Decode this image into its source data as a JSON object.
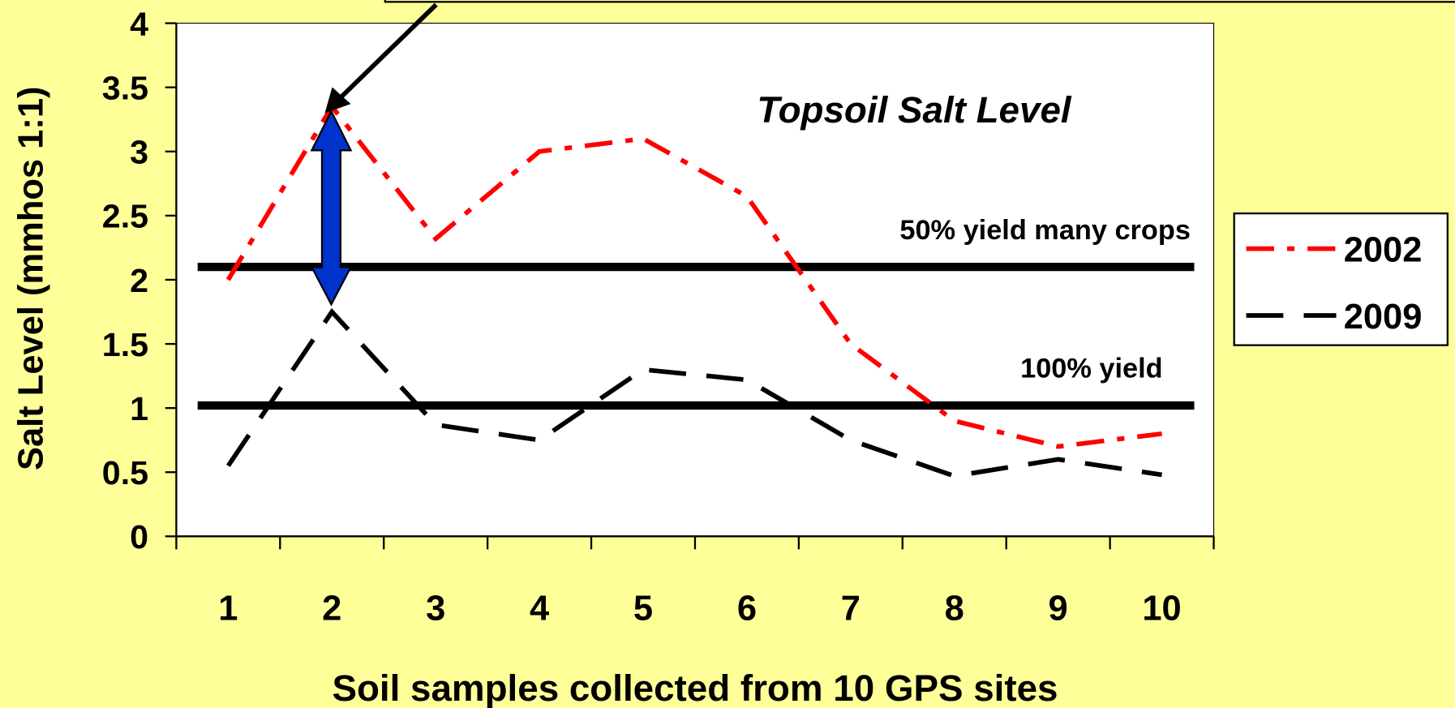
{
  "chart_data": {
    "type": "line",
    "title": "Topsoil Salt Level",
    "x_label": "Soil samples collected from 10 GPS sites",
    "y_label": "Salt Level (mmhos 1:1)",
    "categories": [
      "1",
      "2",
      "3",
      "4",
      "5",
      "6",
      "7",
      "8",
      "9",
      "10"
    ],
    "series": [
      {
        "name": "2002",
        "color": "#ff0000",
        "values": [
          2.0,
          3.35,
          2.32,
          3.0,
          3.1,
          2.65,
          1.5,
          0.9,
          0.7,
          0.8
        ]
      },
      {
        "name": "2009",
        "color": "#000000",
        "values": [
          0.55,
          1.75,
          0.87,
          0.75,
          1.3,
          1.22,
          0.75,
          0.47,
          0.6,
          0.48
        ]
      }
    ],
    "ylim": [
      0,
      4
    ],
    "yticks": [
      0,
      0.5,
      1,
      1.5,
      2,
      2.5,
      3,
      3.5,
      4
    ],
    "reference_lines": [
      {
        "label": "50% yield many crops",
        "value": 2.1
      },
      {
        "label": "100% yield",
        "value": 1.02
      }
    ],
    "legend": "right"
  }
}
